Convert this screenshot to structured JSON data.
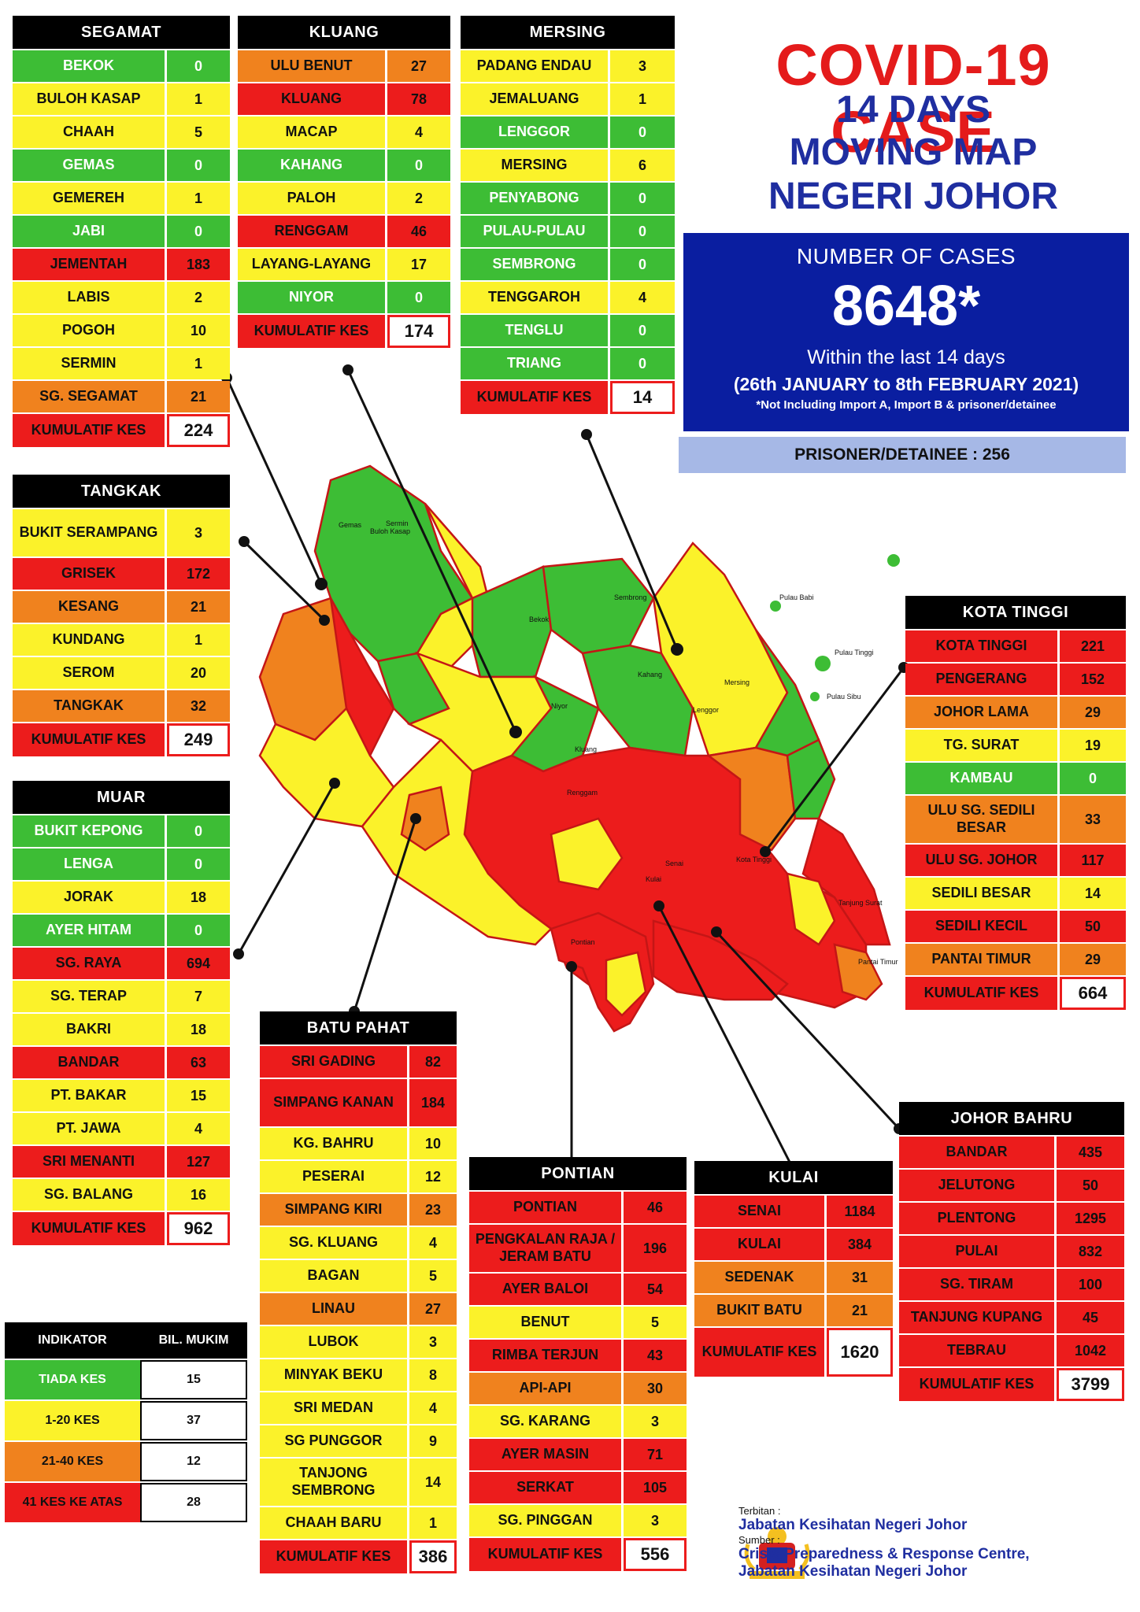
{
  "title": {
    "line1": "COVID-19 CASE",
    "line2": "14 DAYS",
    "line3": "MOVING MAP",
    "line4": "NEGERI JOHOR"
  },
  "summary": {
    "label": "NUMBER OF CASES",
    "count": "8648*",
    "period_line1": "Within the last 14 days",
    "period_line2": "(26th JANUARY to 8th FEBRUARY 2021)",
    "note": "*Not Including Import A, Import B & prisoner/detainee",
    "prisoner": "PRISONER/DETAINEE : 256"
  },
  "colors": {
    "green": "#3dbd35",
    "yellow": "#fbf22a",
    "orange": "#f0821e",
    "red": "#ec1c1c",
    "blue": "#0a1ea0"
  },
  "districts": [
    {
      "key": "segamat",
      "name": "SEGAMAT",
      "rows": [
        {
          "n": "BEKOK",
          "v": "0",
          "c": "green"
        },
        {
          "n": "BULOH KASAP",
          "v": "1",
          "c": "yellow"
        },
        {
          "n": "CHAAH",
          "v": "5",
          "c": "yellow"
        },
        {
          "n": "GEMAS",
          "v": "0",
          "c": "green"
        },
        {
          "n": "GEMEREH",
          "v": "1",
          "c": "yellow"
        },
        {
          "n": "JABI",
          "v": "0",
          "c": "green"
        },
        {
          "n": "JEMENTAH",
          "v": "183",
          "c": "red"
        },
        {
          "n": "LABIS",
          "v": "2",
          "c": "yellow"
        },
        {
          "n": "POGOH",
          "v": "10",
          "c": "yellow"
        },
        {
          "n": "SERMIN",
          "v": "1",
          "c": "yellow"
        },
        {
          "n": "SG. SEGAMAT",
          "v": "21",
          "c": "orange"
        }
      ],
      "total_label": "KUMULATIF KES",
      "total": "224"
    },
    {
      "key": "kluang",
      "name": "KLUANG",
      "rows": [
        {
          "n": "ULU BENUT",
          "v": "27",
          "c": "orange"
        },
        {
          "n": "KLUANG",
          "v": "78",
          "c": "red"
        },
        {
          "n": "MACAP",
          "v": "4",
          "c": "yellow"
        },
        {
          "n": "KAHANG",
          "v": "0",
          "c": "green"
        },
        {
          "n": "PALOH",
          "v": "2",
          "c": "yellow"
        },
        {
          "n": "RENGGAM",
          "v": "46",
          "c": "red"
        },
        {
          "n": "LAYANG-LAYANG",
          "v": "17",
          "c": "yellow"
        },
        {
          "n": "NIYOR",
          "v": "0",
          "c": "green"
        }
      ],
      "total_label": "KUMULATIF KES",
      "total": "174"
    },
    {
      "key": "mersing",
      "name": "MERSING",
      "rows": [
        {
          "n": "PADANG ENDAU",
          "v": "3",
          "c": "yellow"
        },
        {
          "n": "JEMALUANG",
          "v": "1",
          "c": "yellow"
        },
        {
          "n": "LENGGOR",
          "v": "0",
          "c": "green"
        },
        {
          "n": "MERSING",
          "v": "6",
          "c": "yellow"
        },
        {
          "n": "PENYABONG",
          "v": "0",
          "c": "green"
        },
        {
          "n": "PULAU-PULAU",
          "v": "0",
          "c": "green"
        },
        {
          "n": "SEMBRONG",
          "v": "0",
          "c": "green"
        },
        {
          "n": "TENGGAROH",
          "v": "4",
          "c": "yellow"
        },
        {
          "n": "TENGLU",
          "v": "0",
          "c": "green"
        },
        {
          "n": "TRIANG",
          "v": "0",
          "c": "green"
        }
      ],
      "total_label": "KUMULATIF KES",
      "total": "14"
    },
    {
      "key": "tangkak",
      "name": "TANGKAK",
      "rows": [
        {
          "n": "BUKIT SERAMPANG",
          "v": "3",
          "c": "yellow",
          "tall": true
        },
        {
          "n": "GRISEK",
          "v": "172",
          "c": "red"
        },
        {
          "n": "KESANG",
          "v": "21",
          "c": "orange"
        },
        {
          "n": "KUNDANG",
          "v": "1",
          "c": "yellow"
        },
        {
          "n": "SEROM",
          "v": "20",
          "c": "yellow"
        },
        {
          "n": "TANGKAK",
          "v": "32",
          "c": "orange"
        }
      ],
      "total_label": "KUMULATIF KES",
      "total": "249"
    },
    {
      "key": "muar",
      "name": "MUAR",
      "rows": [
        {
          "n": "BUKIT KEPONG",
          "v": "0",
          "c": "green"
        },
        {
          "n": "LENGA",
          "v": "0",
          "c": "green"
        },
        {
          "n": "JORAK",
          "v": "18",
          "c": "yellow"
        },
        {
          "n": "AYER HITAM",
          "v": "0",
          "c": "green"
        },
        {
          "n": "SG. RAYA",
          "v": "694",
          "c": "red"
        },
        {
          "n": "SG. TERAP",
          "v": "7",
          "c": "yellow"
        },
        {
          "n": "BAKRI",
          "v": "18",
          "c": "yellow"
        },
        {
          "n": "BANDAR",
          "v": "63",
          "c": "red"
        },
        {
          "n": "PT. BAKAR",
          "v": "15",
          "c": "yellow"
        },
        {
          "n": "PT. JAWA",
          "v": "4",
          "c": "yellow"
        },
        {
          "n": "SRI MENANTI",
          "v": "127",
          "c": "red"
        },
        {
          "n": "SG. BALANG",
          "v": "16",
          "c": "yellow"
        }
      ],
      "total_label": "KUMULATIF KES",
      "total": "962"
    },
    {
      "key": "kotatinggi",
      "name": "KOTA TINGGI",
      "rows": [
        {
          "n": "KOTA TINGGI",
          "v": "221",
          "c": "red"
        },
        {
          "n": "PENGERANG",
          "v": "152",
          "c": "red"
        },
        {
          "n": "JOHOR LAMA",
          "v": "29",
          "c": "orange"
        },
        {
          "n": "TG. SURAT",
          "v": "19",
          "c": "yellow"
        },
        {
          "n": "KAMBAU",
          "v": "0",
          "c": "green"
        },
        {
          "n": "ULU SG. SEDILI BESAR",
          "v": "33",
          "c": "orange",
          "tall": true
        },
        {
          "n": "ULU SG. JOHOR",
          "v": "117",
          "c": "red"
        },
        {
          "n": "SEDILI BESAR",
          "v": "14",
          "c": "yellow"
        },
        {
          "n": "SEDILI KECIL",
          "v": "50",
          "c": "red"
        },
        {
          "n": "PANTAI TIMUR",
          "v": "29",
          "c": "orange"
        }
      ],
      "total_label": "KUMULATIF KES",
      "total": "664"
    },
    {
      "key": "batupahat",
      "name": "BATU PAHAT",
      "rows": [
        {
          "n": "SRI GADING",
          "v": "82",
          "c": "red"
        },
        {
          "n": "SIMPANG KANAN",
          "v": "184",
          "c": "red",
          "tall": true
        },
        {
          "n": "KG. BAHRU",
          "v": "10",
          "c": "yellow"
        },
        {
          "n": "PESERAI",
          "v": "12",
          "c": "yellow"
        },
        {
          "n": "SIMPANG KIRI",
          "v": "23",
          "c": "orange"
        },
        {
          "n": "SG. KLUANG",
          "v": "4",
          "c": "yellow"
        },
        {
          "n": "BAGAN",
          "v": "5",
          "c": "yellow"
        },
        {
          "n": "LINAU",
          "v": "27",
          "c": "orange"
        },
        {
          "n": "LUBOK",
          "v": "3",
          "c": "yellow"
        },
        {
          "n": "MINYAK BEKU",
          "v": "8",
          "c": "yellow"
        },
        {
          "n": "SRI MEDAN",
          "v": "4",
          "c": "yellow"
        },
        {
          "n": "SG PUNGGOR",
          "v": "9",
          "c": "yellow"
        },
        {
          "n": "TANJONG SEMBRONG",
          "v": "14",
          "c": "yellow",
          "tall": true
        },
        {
          "n": "CHAAH BARU",
          "v": "1",
          "c": "yellow"
        }
      ],
      "total_label": "KUMULATIF KES",
      "total": "386"
    },
    {
      "key": "pontian",
      "name": "PONTIAN",
      "rows": [
        {
          "n": "PONTIAN",
          "v": "46",
          "c": "red"
        },
        {
          "n": "PENGKALAN RAJA / JERAM BATU",
          "v": "196",
          "c": "red",
          "tall": true
        },
        {
          "n": "AYER BALOI",
          "v": "54",
          "c": "red"
        },
        {
          "n": "BENUT",
          "v": "5",
          "c": "yellow"
        },
        {
          "n": "RIMBA TERJUN",
          "v": "43",
          "c": "red"
        },
        {
          "n": "API-API",
          "v": "30",
          "c": "orange"
        },
        {
          "n": "SG. KARANG",
          "v": "3",
          "c": "yellow"
        },
        {
          "n": "AYER MASIN",
          "v": "71",
          "c": "red"
        },
        {
          "n": "SERKAT",
          "v": "105",
          "c": "red"
        },
        {
          "n": "SG. PINGGAN",
          "v": "3",
          "c": "yellow"
        }
      ],
      "total_label": "KUMULATIF KES",
      "total": "556"
    },
    {
      "key": "kulai",
      "name": "KULAI",
      "rows": [
        {
          "n": "SENAI",
          "v": "1184",
          "c": "red"
        },
        {
          "n": "KULAI",
          "v": "384",
          "c": "red"
        },
        {
          "n": "SEDENAK",
          "v": "31",
          "c": "orange"
        },
        {
          "n": "BUKIT BATU",
          "v": "21",
          "c": "orange"
        }
      ],
      "total_label": "KUMULATIF KES",
      "total": "1620",
      "total_tall": true
    },
    {
      "key": "johorbahru",
      "name": "JOHOR BAHRU",
      "rows": [
        {
          "n": "BANDAR",
          "v": "435",
          "c": "red"
        },
        {
          "n": "JELUTONG",
          "v": "50",
          "c": "red"
        },
        {
          "n": "PLENTONG",
          "v": "1295",
          "c": "red"
        },
        {
          "n": "PULAI",
          "v": "832",
          "c": "red"
        },
        {
          "n": "SG. TIRAM",
          "v": "100",
          "c": "red"
        },
        {
          "n": "TANJUNG KUPANG",
          "v": "45",
          "c": "red"
        },
        {
          "n": "TEBRAU",
          "v": "1042",
          "c": "red"
        }
      ],
      "total_label": "KUMULATIF KES",
      "total": "3799"
    }
  ],
  "legend": {
    "header": [
      "INDIKATOR",
      "BIL. MUKIM"
    ],
    "rows": [
      {
        "label": "TIADA KES",
        "count": "15",
        "c": "green"
      },
      {
        "label": "1-20 KES",
        "count": "37",
        "c": "yellow"
      },
      {
        "label": "21-40 KES",
        "count": "12",
        "c": "orange"
      },
      {
        "label": "41 KES KE ATAS",
        "count": "28",
        "c": "red"
      }
    ]
  },
  "footer": {
    "terbitan_label": "Terbitan :",
    "terbitan": "Jabatan Kesihatan Negeri Johor",
    "sumber_label": "Sumber :",
    "sumber1": "Crisis Preparedness & Response Centre,",
    "sumber2": "Jabatan Kesihatan Negeri Johor"
  },
  "map_labels": [
    "Gemas",
    "Buloh Kasap",
    "Sermin",
    "Bekok",
    "Sembrong",
    "Pulau Tinggi",
    "Pulau Sibu",
    "Pulau Babi",
    "Kluang",
    "Niyor",
    "Kahang",
    "Lenggor",
    "Mersing",
    "Renggam",
    "Senai",
    "Kulai",
    "Pontian",
    "Kota Tinggi",
    "Tanjung Surat",
    "Pantai Timur"
  ]
}
